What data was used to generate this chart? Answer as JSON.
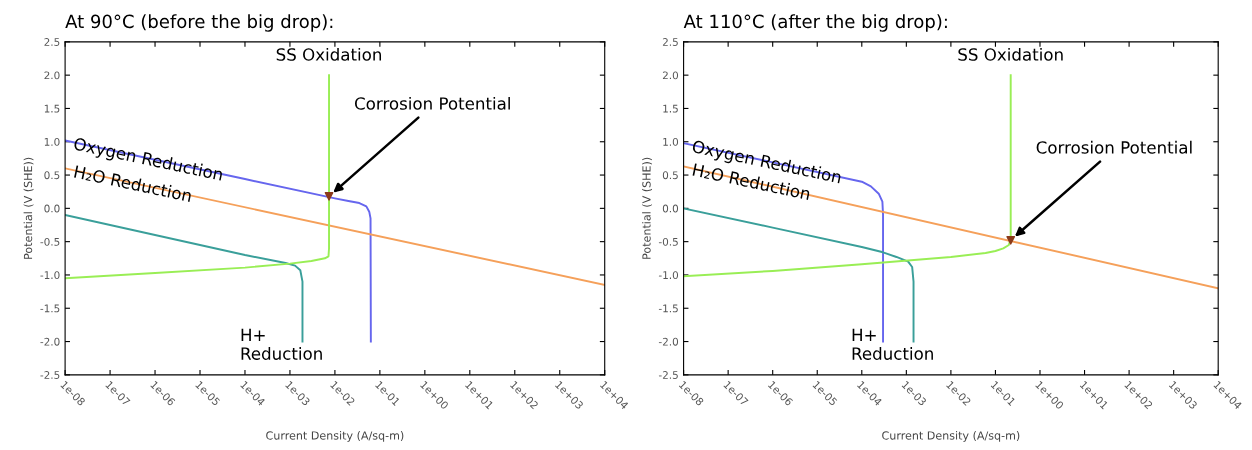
{
  "chart_data": [
    {
      "type": "line",
      "title": "At 90°C (before the big drop):",
      "xlabel": "Current Density (A/sq-m)",
      "ylabel": "Potential (V (SHE))",
      "log": "x",
      "grid": false,
      "xlim": [
        1e-08,
        10000.0
      ],
      "ylim": [
        -2.5,
        2.5
      ],
      "xticks": [
        {
          "value": 1e-08,
          "label": "1e-08"
        },
        {
          "value": 1e-07,
          "label": "1e-07"
        },
        {
          "value": 1e-06,
          "label": "1e-06"
        },
        {
          "value": 1e-05,
          "label": "1e-05"
        },
        {
          "value": 0.0001,
          "label": "1e-04"
        },
        {
          "value": 0.001,
          "label": "1e-03"
        },
        {
          "value": 0.01,
          "label": "1e-02"
        },
        {
          "value": 0.1,
          "label": "1e-01"
        },
        {
          "value": 1,
          "label": "1e+00"
        },
        {
          "value": 10,
          "label": "1e+01"
        },
        {
          "value": 100,
          "label": "1e+02"
        },
        {
          "value": 1000,
          "label": "1e+03"
        },
        {
          "value": 10000,
          "label": "1e+04"
        }
      ],
      "yticks": [
        {
          "value": -2.5,
          "label": "-2.5"
        },
        {
          "value": -2,
          "label": "-2.0"
        },
        {
          "value": -1.5,
          "label": "-1.5"
        },
        {
          "value": -1,
          "label": "-1.0"
        },
        {
          "value": -0.5,
          "label": "-0.5"
        },
        {
          "value": 0,
          "label": "0.0"
        },
        {
          "value": 0.5,
          "label": "0.5"
        },
        {
          "value": 1,
          "label": "1.0"
        },
        {
          "value": 1.5,
          "label": "1.5"
        },
        {
          "value": 2,
          "label": "2.0"
        },
        {
          "value": 2.5,
          "label": "2.5"
        }
      ],
      "series": [
        {
          "color": "#6666ee",
          "x": [
            1e-08,
            1e-06,
            0.0001,
            0.01,
            0.02,
            0.035,
            0.05,
            0.058,
            0.062,
            0.063
          ],
          "values": [
            1.02,
            0.73,
            0.44,
            0.15,
            0.11,
            0.08,
            0.03,
            -0.05,
            -0.15,
            -2.0
          ]
        },
        {
          "color": "#f5a05a",
          "x": [
            1e-08,
            10000.0
          ],
          "values": [
            0.6,
            -1.15
          ]
        },
        {
          "color": "#3a9f9a",
          "x": [
            1e-08,
            1e-06,
            0.0001,
            0.0008,
            0.0013,
            0.0017,
            0.0019,
            0.0019
          ],
          "values": [
            -0.1,
            -0.4,
            -0.7,
            -0.82,
            -0.86,
            -0.93,
            -1.1,
            -2.0
          ]
        },
        {
          "color": "#99ee55",
          "x": [
            1e-08,
            1e-06,
            0.0001,
            0.001,
            0.003,
            0.006,
            0.0072,
            0.0074,
            0.0074
          ],
          "values": [
            -1.05,
            -0.97,
            -0.89,
            -0.83,
            -0.79,
            -0.75,
            -0.72,
            -0.6,
            2.0
          ]
        },
        {
          "type": "scatter",
          "marker": "triangle",
          "color": "#8b3a1a",
          "x": [
            0.0074
          ],
          "values": [
            0.18
          ]
        }
      ],
      "annotations": [
        {
          "text": "SS Oxidation",
          "x": 0.0074,
          "y": 2.0
        },
        {
          "text": "Oxygen Reduction",
          "x": 1e-08,
          "y": 1.02
        },
        {
          "text": "H₂O Reduction",
          "x": 1e-08,
          "y": 0.6
        },
        {
          "text": "H+\nReduction",
          "x": 0.0019,
          "y": -2.0
        },
        {
          "text": "Corrosion Potential",
          "x": 0.0074,
          "y": 0.18
        }
      ]
    },
    {
      "type": "line",
      "title": "At 110°C (after the big drop):",
      "xlabel": "Current Density (A/sq-m)",
      "ylabel": "Potential (V (SHE))",
      "log": "x",
      "grid": false,
      "xlim": [
        1e-08,
        10000.0
      ],
      "ylim": [
        -2.5,
        2.5
      ],
      "xticks": [
        {
          "value": 1e-08,
          "label": "1e-08"
        },
        {
          "value": 1e-07,
          "label": "1e-07"
        },
        {
          "value": 1e-06,
          "label": "1e-06"
        },
        {
          "value": 1e-05,
          "label": "1e-05"
        },
        {
          "value": 0.0001,
          "label": "1e-04"
        },
        {
          "value": 0.001,
          "label": "1e-03"
        },
        {
          "value": 0.01,
          "label": "1e-02"
        },
        {
          "value": 0.1,
          "label": "1e-01"
        },
        {
          "value": 1,
          "label": "1e+00"
        },
        {
          "value": 10,
          "label": "1e+01"
        },
        {
          "value": 100,
          "label": "1e+02"
        },
        {
          "value": 1000,
          "label": "1e+03"
        },
        {
          "value": 10000,
          "label": "1e+04"
        }
      ],
      "yticks": [
        {
          "value": -2.5,
          "label": "-2.5"
        },
        {
          "value": -2,
          "label": "-2.0"
        },
        {
          "value": -1.5,
          "label": "-1.5"
        },
        {
          "value": -1,
          "label": "-1.0"
        },
        {
          "value": -0.5,
          "label": "-0.5"
        },
        {
          "value": 0,
          "label": "0.0"
        },
        {
          "value": 0.5,
          "label": "0.5"
        },
        {
          "value": 1,
          "label": "1.0"
        },
        {
          "value": 1.5,
          "label": "1.5"
        },
        {
          "value": 2,
          "label": "2.0"
        },
        {
          "value": 2.5,
          "label": "2.5"
        }
      ],
      "series": [
        {
          "color": "#6666ee",
          "x": [
            1e-08,
            1e-06,
            0.0001,
            0.00016,
            0.00024,
            0.00029,
            0.0003,
            0.0003
          ],
          "values": [
            0.98,
            0.69,
            0.4,
            0.33,
            0.22,
            0.1,
            -0.1,
            -2.0
          ]
        },
        {
          "color": "#f5a05a",
          "x": [
            1e-08,
            10000.0
          ],
          "values": [
            0.63,
            -1.2
          ]
        },
        {
          "color": "#3a9f9a",
          "x": [
            1e-08,
            1e-06,
            0.0001,
            0.0003,
            0.0006,
            0.0011,
            0.00135,
            0.00145,
            0.00145
          ],
          "values": [
            0.0,
            -0.29,
            -0.58,
            -0.66,
            -0.73,
            -0.8,
            -0.88,
            -1.1,
            -2.0
          ]
        },
        {
          "color": "#99ee55",
          "x": [
            1e-08,
            1e-06,
            0.0001,
            0.01,
            0.06,
            0.1,
            0.15,
            0.2,
            0.22,
            0.22
          ],
          "values": [
            -1.02,
            -0.94,
            -0.84,
            -0.73,
            -0.67,
            -0.64,
            -0.6,
            -0.55,
            -0.45,
            2.0
          ]
        },
        {
          "type": "scatter",
          "marker": "triangle",
          "color": "#8b3a1a",
          "x": [
            0.22
          ],
          "values": [
            -0.48
          ]
        }
      ],
      "annotations": [
        {
          "text": "SS Oxidation",
          "x": 0.22,
          "y": 2.0
        },
        {
          "text": "Oxygen Reduction",
          "x": 1e-08,
          "y": 0.98
        },
        {
          "text": "H₂O Reduction",
          "x": 1e-08,
          "y": 0.63
        },
        {
          "text": "H+\nReduction",
          "x": 0.00145,
          "y": -2.0
        },
        {
          "text": "Corrosion Potential",
          "x": 0.22,
          "y": -0.48
        }
      ]
    }
  ]
}
